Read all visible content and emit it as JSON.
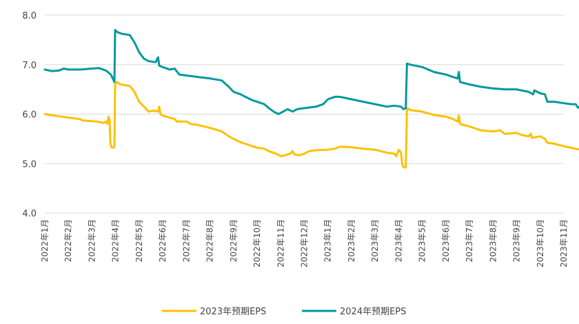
{
  "chart_data": {
    "type": "line",
    "title": "",
    "xlabel": "",
    "ylabel": "",
    "ylim": [
      4.0,
      8.0
    ],
    "yticks": [
      "4.0",
      "5.0",
      "6.0",
      "7.0",
      "8.0"
    ],
    "xtick_labels": [
      "2022年1月",
      "2022年2月",
      "2022年3月",
      "2022年4月",
      "2022年5月",
      "2022年6月",
      "2022年7月",
      "2022年8月",
      "2022年9月",
      "2022年10月",
      "2022年11月",
      "2022年12月",
      "2023年1月",
      "2023年2月",
      "2023年3月",
      "2023年4月",
      "2023年5月",
      "2023年6月",
      "2023年7月",
      "2023年8月",
      "2023年9月",
      "2023年10月",
      "2023年11月"
    ],
    "grid": true,
    "legend_position": "bottom",
    "series": [
      {
        "name": "2023年预期EPS",
        "color": "#FFC000",
        "points": [
          [
            0.0,
            6.0
          ],
          [
            0.4,
            5.97
          ],
          [
            1.0,
            5.93
          ],
          [
            1.3,
            5.91
          ],
          [
            1.5,
            5.9
          ],
          [
            1.6,
            5.87
          ],
          [
            2.2,
            5.85
          ],
          [
            2.5,
            5.82
          ],
          [
            2.6,
            5.85
          ],
          [
            2.65,
            5.8
          ],
          [
            2.7,
            5.95
          ],
          [
            2.75,
            5.87
          ],
          [
            2.78,
            5.4
          ],
          [
            2.82,
            5.33
          ],
          [
            2.9,
            5.32
          ],
          [
            2.95,
            5.35
          ],
          [
            2.98,
            6.6
          ],
          [
            3.05,
            6.65
          ],
          [
            3.2,
            6.6
          ],
          [
            3.6,
            6.57
          ],
          [
            3.8,
            6.45
          ],
          [
            4.0,
            6.25
          ],
          [
            4.2,
            6.15
          ],
          [
            4.4,
            6.05
          ],
          [
            4.6,
            6.07
          ],
          [
            4.8,
            6.05
          ],
          [
            4.85,
            6.15
          ],
          [
            4.9,
            6.0
          ],
          [
            5.0,
            5.97
          ],
          [
            5.5,
            5.9
          ],
          [
            5.6,
            5.85
          ],
          [
            6.0,
            5.85
          ],
          [
            6.2,
            5.8
          ],
          [
            6.5,
            5.78
          ],
          [
            7.0,
            5.72
          ],
          [
            7.5,
            5.65
          ],
          [
            7.8,
            5.55
          ],
          [
            8.0,
            5.5
          ],
          [
            8.3,
            5.43
          ],
          [
            8.5,
            5.4
          ],
          [
            8.8,
            5.35
          ],
          [
            9.0,
            5.32
          ],
          [
            9.3,
            5.3
          ],
          [
            9.5,
            5.25
          ],
          [
            9.8,
            5.2
          ],
          [
            10.0,
            5.15
          ],
          [
            10.2,
            5.17
          ],
          [
            10.4,
            5.2
          ],
          [
            10.5,
            5.25
          ],
          [
            10.6,
            5.18
          ],
          [
            10.8,
            5.17
          ],
          [
            11.0,
            5.2
          ],
          [
            11.2,
            5.25
          ],
          [
            11.5,
            5.27
          ],
          [
            12.0,
            5.28
          ],
          [
            12.3,
            5.3
          ],
          [
            12.5,
            5.34
          ],
          [
            13.0,
            5.33
          ],
          [
            13.5,
            5.3
          ],
          [
            14.0,
            5.28
          ],
          [
            14.5,
            5.22
          ],
          [
            14.8,
            5.2
          ],
          [
            14.9,
            5.15
          ],
          [
            15.0,
            5.28
          ],
          [
            15.05,
            5.25
          ],
          [
            15.1,
            5.22
          ],
          [
            15.15,
            4.98
          ],
          [
            15.2,
            4.93
          ],
          [
            15.3,
            4.92
          ],
          [
            15.35,
            6.12
          ],
          [
            15.5,
            6.08
          ],
          [
            16.0,
            6.05
          ],
          [
            16.5,
            5.98
          ],
          [
            17.0,
            5.95
          ],
          [
            17.3,
            5.9
          ],
          [
            17.5,
            5.85
          ],
          [
            17.55,
            5.97
          ],
          [
            17.6,
            5.8
          ],
          [
            18.0,
            5.75
          ],
          [
            18.3,
            5.7
          ],
          [
            18.5,
            5.67
          ],
          [
            19.0,
            5.65
          ],
          [
            19.3,
            5.67
          ],
          [
            19.5,
            5.6
          ],
          [
            20.0,
            5.62
          ],
          [
            20.2,
            5.58
          ],
          [
            20.5,
            5.55
          ],
          [
            20.6,
            5.6
          ],
          [
            20.65,
            5.52
          ],
          [
            21.0,
            5.55
          ],
          [
            21.2,
            5.5
          ],
          [
            21.3,
            5.42
          ],
          [
            21.6,
            5.4
          ],
          [
            22.0,
            5.35
          ],
          [
            22.3,
            5.32
          ],
          [
            22.5,
            5.3
          ],
          [
            22.7,
            5.28
          ],
          [
            22.85,
            5.3
          ]
        ]
      },
      {
        "name": "2024年预期EPS",
        "color": "#00999C",
        "points": [
          [
            0.0,
            6.9
          ],
          [
            0.3,
            6.87
          ],
          [
            0.6,
            6.88
          ],
          [
            0.8,
            6.92
          ],
          [
            1.0,
            6.9
          ],
          [
            1.5,
            6.9
          ],
          [
            2.0,
            6.92
          ],
          [
            2.3,
            6.93
          ],
          [
            2.6,
            6.88
          ],
          [
            2.8,
            6.8
          ],
          [
            2.9,
            6.7
          ],
          [
            2.95,
            6.65
          ],
          [
            2.98,
            7.7
          ],
          [
            3.1,
            7.65
          ],
          [
            3.3,
            7.62
          ],
          [
            3.6,
            7.6
          ],
          [
            3.8,
            7.45
          ],
          [
            4.0,
            7.25
          ],
          [
            4.2,
            7.12
          ],
          [
            4.4,
            7.07
          ],
          [
            4.7,
            7.05
          ],
          [
            4.8,
            7.15
          ],
          [
            4.85,
            6.98
          ],
          [
            5.0,
            6.95
          ],
          [
            5.3,
            6.9
          ],
          [
            5.5,
            6.92
          ],
          [
            5.7,
            6.8
          ],
          [
            6.0,
            6.78
          ],
          [
            6.5,
            6.75
          ],
          [
            7.0,
            6.72
          ],
          [
            7.5,
            6.68
          ],
          [
            7.8,
            6.55
          ],
          [
            8.0,
            6.45
          ],
          [
            8.3,
            6.4
          ],
          [
            8.5,
            6.35
          ],
          [
            8.8,
            6.28
          ],
          [
            9.0,
            6.25
          ],
          [
            9.3,
            6.2
          ],
          [
            9.5,
            6.12
          ],
          [
            9.7,
            6.05
          ],
          [
            9.9,
            6.0
          ],
          [
            10.1,
            6.05
          ],
          [
            10.3,
            6.1
          ],
          [
            10.5,
            6.05
          ],
          [
            10.7,
            6.1
          ],
          [
            11.0,
            6.12
          ],
          [
            11.5,
            6.15
          ],
          [
            11.8,
            6.2
          ],
          [
            12.0,
            6.3
          ],
          [
            12.3,
            6.35
          ],
          [
            12.5,
            6.35
          ],
          [
            13.0,
            6.3
          ],
          [
            13.5,
            6.25
          ],
          [
            14.0,
            6.2
          ],
          [
            14.5,
            6.15
          ],
          [
            14.8,
            6.17
          ],
          [
            15.1,
            6.15
          ],
          [
            15.2,
            6.1
          ],
          [
            15.3,
            6.12
          ],
          [
            15.35,
            7.02
          ],
          [
            15.5,
            7.0
          ],
          [
            16.0,
            6.95
          ],
          [
            16.5,
            6.85
          ],
          [
            17.0,
            6.8
          ],
          [
            17.3,
            6.75
          ],
          [
            17.5,
            6.72
          ],
          [
            17.55,
            6.85
          ],
          [
            17.6,
            6.65
          ],
          [
            18.0,
            6.6
          ],
          [
            18.5,
            6.55
          ],
          [
            19.0,
            6.52
          ],
          [
            19.5,
            6.5
          ],
          [
            20.0,
            6.5
          ],
          [
            20.5,
            6.45
          ],
          [
            20.7,
            6.4
          ],
          [
            20.75,
            6.48
          ],
          [
            21.0,
            6.42
          ],
          [
            21.2,
            6.4
          ],
          [
            21.3,
            6.25
          ],
          [
            21.6,
            6.25
          ],
          [
            22.0,
            6.22
          ],
          [
            22.3,
            6.2
          ],
          [
            22.5,
            6.2
          ],
          [
            22.6,
            6.13
          ],
          [
            22.7,
            6.15
          ],
          [
            22.85,
            6.17
          ]
        ]
      }
    ]
  }
}
